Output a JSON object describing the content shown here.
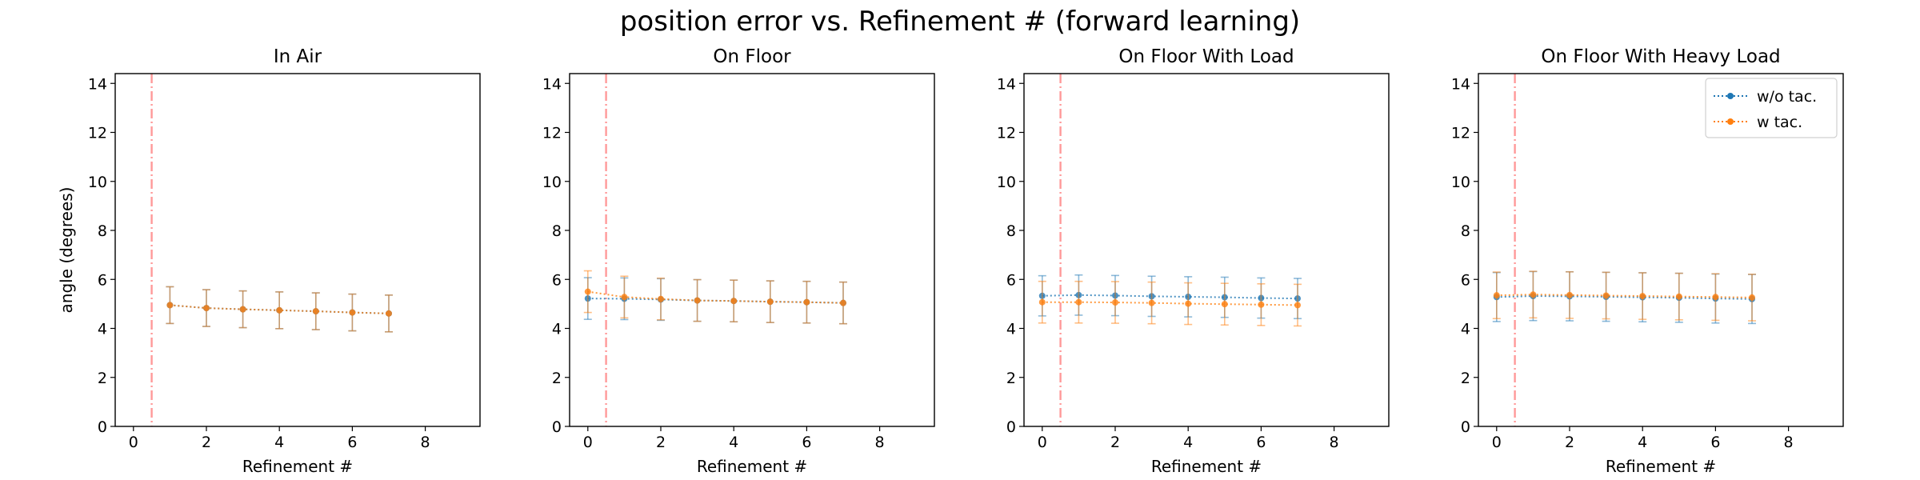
{
  "figure_title": "position error vs. Refinement # (forward learning)",
  "colors": {
    "w_o_tac": "#1f77b4",
    "w_tac": "#ff7f0e",
    "vline": "#ff9999",
    "errorbar": "#999999"
  },
  "chart_data": [
    {
      "type": "line",
      "title": "In Air",
      "xlabel": "Refinement #",
      "ylabel": "angle (degrees)",
      "xlim": [
        -0.5,
        9.5
      ],
      "ylim": [
        0,
        14.4
      ],
      "xticks": [
        0,
        2,
        4,
        6,
        8
      ],
      "yticks": [
        0,
        2,
        4,
        6,
        8,
        10,
        12,
        14
      ],
      "vline_x": 0.5,
      "legend": false,
      "x": [
        1,
        2,
        3,
        4,
        5,
        6,
        7
      ],
      "series": [
        {
          "name": "w/o tac.",
          "values": [
            4.95,
            4.83,
            4.78,
            4.74,
            4.7,
            4.65,
            4.61
          ],
          "err": [
            0.75,
            0.75,
            0.75,
            0.75,
            0.75,
            0.75,
            0.75
          ]
        },
        {
          "name": "w tac.",
          "values": [
            4.95,
            4.83,
            4.78,
            4.74,
            4.7,
            4.65,
            4.61
          ],
          "err": [
            0.75,
            0.75,
            0.75,
            0.75,
            0.75,
            0.75,
            0.75
          ]
        }
      ]
    },
    {
      "type": "line",
      "title": "On Floor",
      "xlabel": "Refinement #",
      "xlim": [
        -0.5,
        9.5
      ],
      "ylim": [
        0,
        14.4
      ],
      "xticks": [
        0,
        2,
        4,
        6,
        8
      ],
      "yticks": [
        0,
        2,
        4,
        6,
        8,
        10,
        12,
        14
      ],
      "vline_x": 0.5,
      "legend": false,
      "x": [
        0,
        1,
        2,
        3,
        4,
        5,
        6,
        7
      ],
      "series": [
        {
          "name": "w/o tac.",
          "values": [
            5.22,
            5.21,
            5.18,
            5.14,
            5.12,
            5.09,
            5.07,
            5.04
          ],
          "err": [
            0.85,
            0.85,
            0.85,
            0.85,
            0.85,
            0.85,
            0.85,
            0.85
          ]
        },
        {
          "name": "w tac.",
          "values": [
            5.5,
            5.28,
            5.2,
            5.14,
            5.12,
            5.09,
            5.07,
            5.04
          ],
          "err": [
            0.85,
            0.85,
            0.85,
            0.85,
            0.85,
            0.85,
            0.85,
            0.85
          ]
        }
      ]
    },
    {
      "type": "line",
      "title": "On Floor With Load",
      "xlabel": "Refinement #",
      "xlim": [
        -0.5,
        9.5
      ],
      "ylim": [
        0,
        14.4
      ],
      "xticks": [
        0,
        2,
        4,
        6,
        8
      ],
      "yticks": [
        0,
        2,
        4,
        6,
        8,
        10,
        12,
        14
      ],
      "vline_x": 0.5,
      "legend": false,
      "x": [
        0,
        1,
        2,
        3,
        4,
        5,
        6,
        7
      ],
      "series": [
        {
          "name": "w/o tac.",
          "values": [
            5.33,
            5.36,
            5.34,
            5.31,
            5.29,
            5.27,
            5.24,
            5.22
          ],
          "err": [
            0.82,
            0.82,
            0.82,
            0.82,
            0.82,
            0.82,
            0.82,
            0.82
          ]
        },
        {
          "name": "w tac.",
          "values": [
            5.07,
            5.07,
            5.06,
            5.04,
            5.01,
            4.99,
            4.97,
            4.95
          ],
          "err": [
            0.85,
            0.85,
            0.85,
            0.85,
            0.85,
            0.85,
            0.85,
            0.85
          ]
        }
      ]
    },
    {
      "type": "line",
      "title": "On Floor With Heavy Load",
      "xlabel": "Refinement #",
      "xlim": [
        -0.5,
        9.5
      ],
      "ylim": [
        0,
        14.4
      ],
      "xticks": [
        0,
        2,
        4,
        6,
        8
      ],
      "yticks": [
        0,
        2,
        4,
        6,
        8,
        10,
        12,
        14
      ],
      "vline_x": 0.5,
      "legend": true,
      "legend_loc": "top-right",
      "x": [
        0,
        1,
        2,
        3,
        4,
        5,
        6,
        7
      ],
      "series": [
        {
          "name": "w/o tac.",
          "values": [
            5.28,
            5.32,
            5.31,
            5.29,
            5.27,
            5.25,
            5.22,
            5.2
          ],
          "err": [
            1.0,
            1.0,
            1.0,
            1.0,
            1.0,
            1.0,
            1.0,
            1.0
          ]
        },
        {
          "name": "w tac.",
          "values": [
            5.35,
            5.38,
            5.36,
            5.34,
            5.32,
            5.3,
            5.28,
            5.26
          ],
          "err": [
            0.95,
            0.95,
            0.95,
            0.95,
            0.95,
            0.95,
            0.95,
            0.95
          ]
        }
      ]
    }
  ]
}
